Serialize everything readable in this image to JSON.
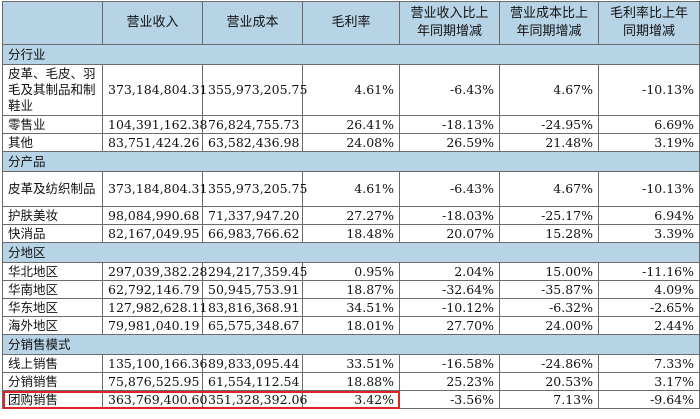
{
  "headers": [
    "",
    "营业收入",
    "营业成本",
    "毛利率",
    "营业收入比上年同期增减",
    "营业成本比上年同期增减",
    "毛利率比上年同期增减"
  ],
  "sections": [
    {
      "title": "分行业",
      "rows": [
        {
          "name": "皮革、毛皮、羽毛及其制品和制鞋业",
          "values": [
            "373,184,804.31",
            "355,973,205.75",
            "4.61%",
            "-6.43%",
            "4.67%",
            "-10.13%"
          ]
        },
        {
          "name": "零售业",
          "values": [
            "104,391,162.38",
            "76,824,755.73",
            "26.41%",
            "-18.13%",
            "-24.95%",
            "6.69%"
          ]
        },
        {
          "name": "其他",
          "values": [
            "83,751,424.26",
            "63,582,436.98",
            "24.08%",
            "26.59%",
            "21.48%",
            "3.19%"
          ]
        }
      ]
    },
    {
      "title": "分产品",
      "rows": [
        {
          "name": "皮革及纺织制品",
          "values": [
            "373,184,804.31",
            "355,973,205.75",
            "4.61%",
            "-6.43%",
            "4.67%",
            "-10.13%"
          ]
        },
        {
          "name": "护肤美妆",
          "values": [
            "98,084,990.68",
            "71,337,947.20",
            "27.27%",
            "-18.03%",
            "-25.17%",
            "6.94%"
          ]
        },
        {
          "name": "快消品",
          "values": [
            "82,167,049.95",
            "66,983,766.62",
            "18.48%",
            "20.07%",
            "15.28%",
            "3.39%"
          ]
        }
      ]
    },
    {
      "title": "分地区",
      "rows": [
        {
          "name": "华北地区",
          "values": [
            "297,039,382.28",
            "294,217,359.45",
            "0.95%",
            "2.04%",
            "15.00%",
            "-11.16%"
          ]
        },
        {
          "name": "华南地区",
          "values": [
            "62,792,146.79",
            "50,945,753.91",
            "18.87%",
            "-32.64%",
            "-35.87%",
            "4.09%"
          ]
        },
        {
          "name": "华东地区",
          "values": [
            "127,982,628.11",
            "83,816,368.91",
            "34.51%",
            "-10.12%",
            "-6.32%",
            "-2.65%"
          ]
        },
        {
          "name": "海外地区",
          "values": [
            "79,981,040.19",
            "65,575,348.67",
            "18.01%",
            "27.70%",
            "24.00%",
            "2.44%"
          ]
        }
      ]
    },
    {
      "title": "分销售模式",
      "rows": [
        {
          "name": "线上销售",
          "values": [
            "135,100,166.36",
            "89,833,095.44",
            "33.51%",
            "-16.58%",
            "-24.86%",
            "7.33%"
          ]
        },
        {
          "name": "分销销售",
          "values": [
            "75,876,525.95",
            "61,554,112.54",
            "18.88%",
            "25.23%",
            "20.53%",
            "3.17%"
          ]
        },
        {
          "name": "团购销售",
          "values": [
            "363,769,400.60",
            "351,328,392.06",
            "3.42%",
            "-3.56%",
            "7.13%",
            "-9.64%"
          ]
        }
      ]
    }
  ],
  "colors": {
    "header_bg": "#b7d4e6",
    "highlight": "#d9262b"
  }
}
